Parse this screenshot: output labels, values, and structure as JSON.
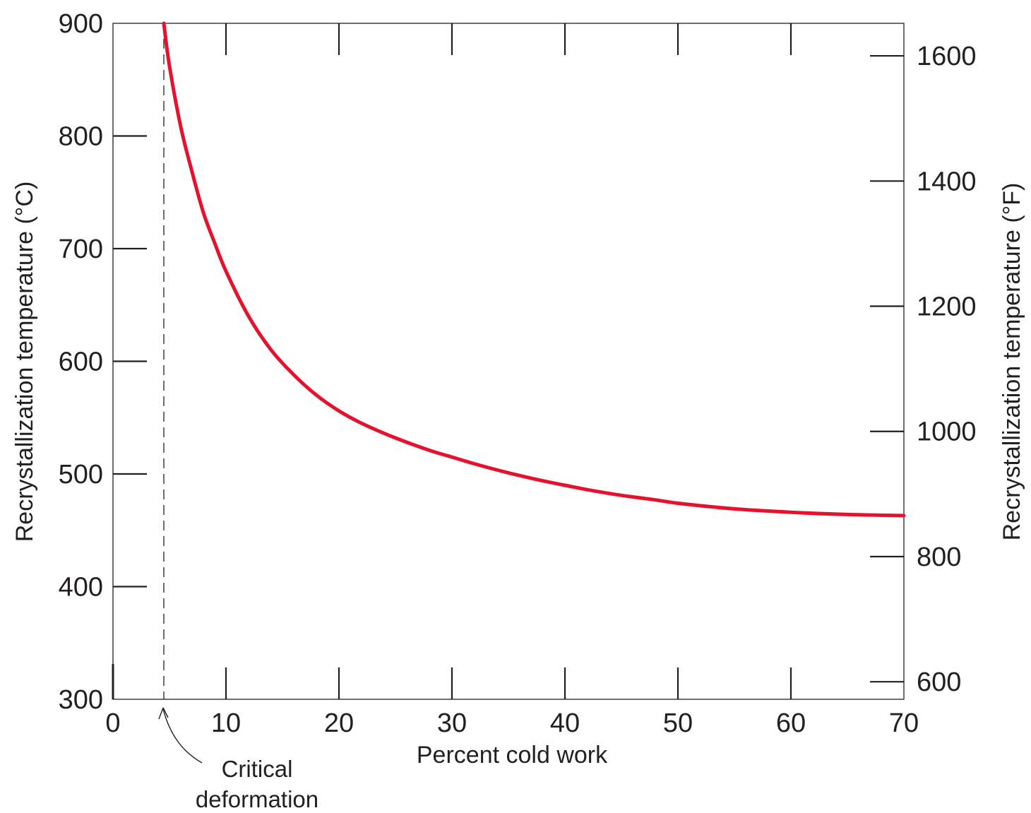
{
  "chart_data": {
    "type": "line",
    "xlabel": "Percent cold work",
    "ylabel": "Recrystallization temperature (°C)",
    "ylabel_right": "Recrystallization temperature (°F)",
    "xlim": [
      0,
      70
    ],
    "ylim": [
      300,
      900
    ],
    "ylim_right": [
      572,
      1652
    ],
    "x_ticks": [
      "0",
      "10",
      "20",
      "30",
      "40",
      "50",
      "60",
      "70"
    ],
    "y_ticks": [
      "300",
      "400",
      "500",
      "600",
      "700",
      "800",
      "900"
    ],
    "y_ticks_right": [
      "600",
      "800",
      "1000",
      "1200",
      "1400",
      "1600"
    ],
    "grid": false,
    "series": [
      {
        "color": "#e8112d",
        "x": [
          4.5,
          5,
          6,
          7,
          8,
          9,
          10,
          12,
          14,
          16,
          18,
          20,
          22,
          25,
          28,
          30,
          32,
          35,
          38,
          40,
          42,
          45,
          48,
          50,
          55,
          60,
          65,
          70
        ],
        "y": [
          900,
          862,
          808,
          768,
          732,
          705,
          680,
          640,
          610,
          588,
          570,
          556,
          545,
          532,
          521,
          515,
          509,
          501,
          494,
          490,
          486,
          481,
          477,
          474,
          469,
          466,
          464,
          463
        ]
      }
    ],
    "critical_deformation_x": 4.5
  },
  "annotation": {
    "line1": "Critical",
    "line2": "deformation"
  },
  "colors": {
    "curve": "#e8112d",
    "axis": "#231f20"
  }
}
